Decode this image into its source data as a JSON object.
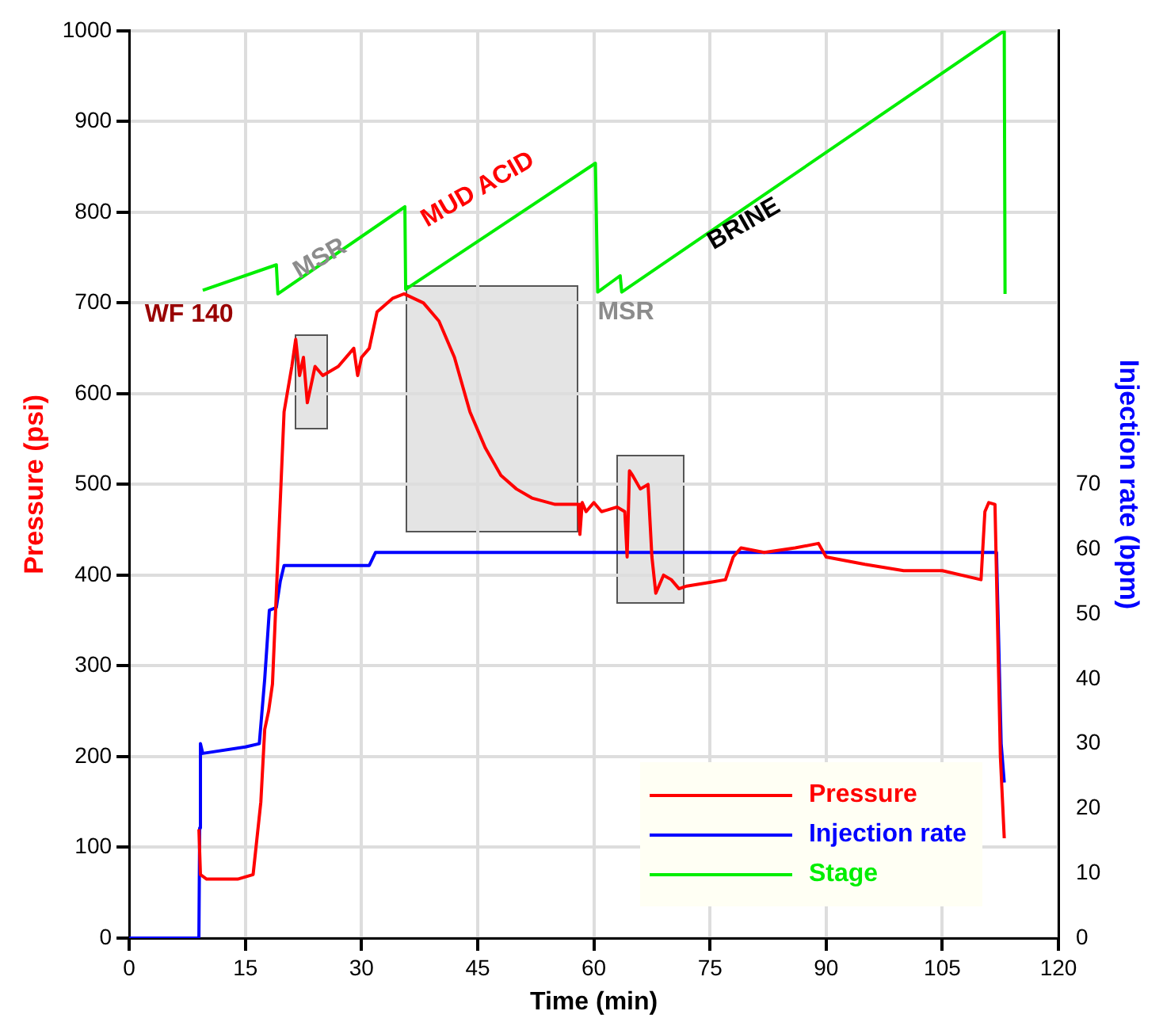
{
  "chart_data": {
    "type": "line",
    "xlabel": "Time (min)",
    "ylabel": "Pressure (psi)",
    "y2label": "Injection rate (bpm)",
    "xlim": [
      0,
      120
    ],
    "xticks": [
      0,
      15,
      30,
      45,
      60,
      75,
      90,
      105,
      120
    ],
    "ylim": [
      0,
      1000
    ],
    "yticks": [
      0,
      100,
      200,
      300,
      400,
      500,
      600,
      700,
      800,
      900,
      1000
    ],
    "y2lim": [
      0,
      140
    ],
    "y2ticks": [
      0,
      10,
      20,
      30,
      40,
      50,
      60,
      70
    ],
    "grid": true,
    "legend": "bottom right",
    "marker": "none",
    "line_style": "solid",
    "series": [
      {
        "name": "Pressure",
        "color": "#ff0000",
        "x": [
          9,
          9.2,
          10,
          14,
          16,
          17,
          17.5,
          18,
          18.5,
          19,
          19.5,
          20,
          21,
          21.5,
          22,
          22.5,
          23,
          24,
          25,
          27,
          29,
          29.5,
          30,
          31,
          32,
          34,
          35.5,
          38,
          40,
          42,
          44,
          46,
          48,
          50,
          52,
          55,
          58,
          58.2,
          58.5,
          59,
          60,
          61,
          63,
          64,
          64.3,
          64.6,
          65,
          66,
          67,
          67.5,
          68,
          69,
          70,
          71,
          72,
          75,
          77,
          78,
          79,
          82,
          86,
          89,
          90,
          95,
          100,
          105,
          110,
          110.5,
          111,
          111.8,
          112.5,
          113
        ],
        "values": [
          120,
          70,
          65,
          65,
          70,
          150,
          230,
          250,
          280,
          380,
          480,
          580,
          630,
          660,
          620,
          640,
          590,
          630,
          620,
          630,
          650,
          620,
          640,
          650,
          690,
          705,
          710,
          700,
          680,
          640,
          580,
          540,
          510,
          495,
          485,
          478,
          478,
          445,
          480,
          470,
          480,
          470,
          475,
          470,
          420,
          515,
          510,
          495,
          500,
          420,
          380,
          400,
          395,
          385,
          388,
          392,
          395,
          420,
          430,
          425,
          430,
          435,
          420,
          412,
          405,
          405,
          395,
          470,
          480,
          478,
          200,
          110
        ]
      },
      {
        "name": "Injection rate",
        "color": "#0000ff",
        "axis": "y2",
        "x": [
          0,
          9,
          9.1,
          9.2,
          9.5,
          15,
          16.8,
          17.5,
          18.1,
          19,
          19.5,
          20,
          31,
          31.8,
          112,
          112.6,
          113
        ],
        "values": [
          0,
          0,
          17,
          30,
          28.5,
          29.5,
          30,
          40,
          50.6,
          51,
          55,
          57.5,
          57.5,
          59.5,
          59.5,
          30,
          24
        ]
      },
      {
        "name": "Stage",
        "color": "#00ee00",
        "x": [
          9.5,
          19,
          19.2,
          35.6,
          35.7,
          60.2,
          60.5,
          63.4,
          63.6,
          113,
          113.1
        ],
        "values": [
          714,
          742,
          710,
          806,
          715,
          854,
          712,
          730,
          712,
          1000,
          710
        ]
      }
    ],
    "annotations": [
      "WF 140",
      "MSR",
      "MUD ACID",
      "MSR",
      "BRINE"
    ]
  }
}
